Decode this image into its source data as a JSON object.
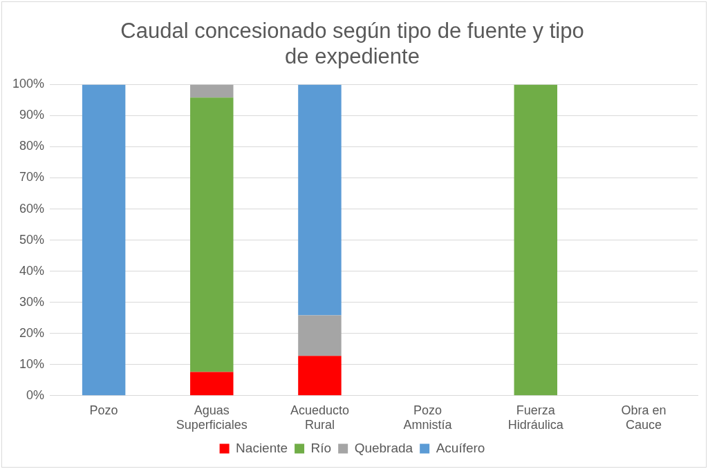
{
  "chart_data": {
    "type": "bar",
    "title": "Caudal concesionado según tipo de fuente y tipo de expediente",
    "stacked": true,
    "categories": [
      "Pozo",
      "Aguas Superficiales",
      "Acueducto Rural",
      "Pozo Amnistía",
      "Fuerza Hidráulica",
      "Obra en Cauce"
    ],
    "series": [
      {
        "name": "Naciente",
        "color": "#ff0000",
        "values": [
          0,
          7.6,
          12.8,
          null,
          0,
          null
        ]
      },
      {
        "name": "Río",
        "color": "#70ad47",
        "values": [
          0,
          88.2,
          0,
          null,
          100,
          null
        ]
      },
      {
        "name": "Quebrada",
        "color": "#a5a5a5",
        "values": [
          0,
          4.2,
          13,
          null,
          0,
          null
        ]
      },
      {
        "name": "Acuífero",
        "color": "#5b9bd5",
        "values": [
          100,
          0,
          74.2,
          null,
          0,
          null
        ]
      }
    ],
    "ylim": [
      0,
      100
    ],
    "yticks": [
      {
        "value": 0,
        "label": "0%"
      },
      {
        "value": 10,
        "label": "10%"
      },
      {
        "value": 20,
        "label": "20%"
      },
      {
        "value": 30,
        "label": "30%"
      },
      {
        "value": 40,
        "label": "40%"
      },
      {
        "value": 50,
        "label": "50%"
      },
      {
        "value": 60,
        "label": "60%"
      },
      {
        "value": 70,
        "label": "70%"
      },
      {
        "value": 80,
        "label": "80%"
      },
      {
        "value": 90,
        "label": "90%"
      },
      {
        "value": 100,
        "label": "100%"
      }
    ],
    "grid": "y",
    "legend": "bottom",
    "marker": "square"
  }
}
